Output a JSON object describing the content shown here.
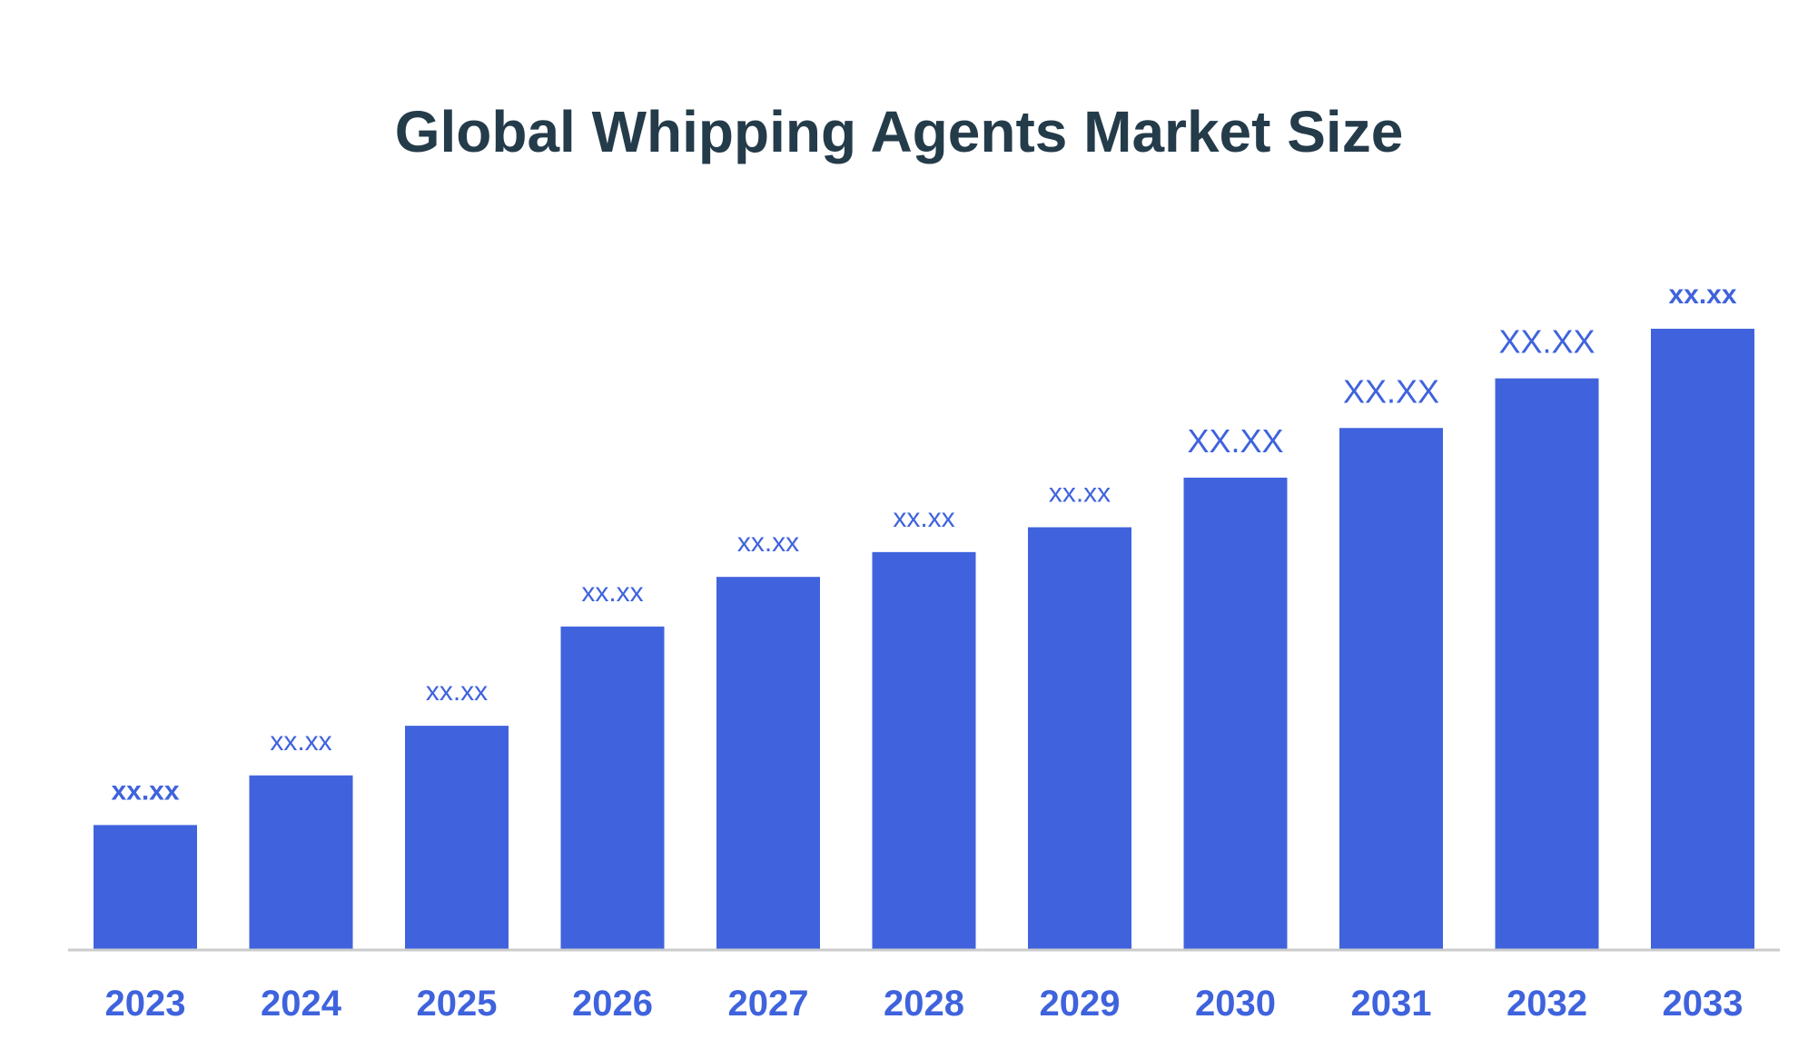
{
  "chart_data": {
    "type": "bar",
    "title": "Global Whipping Agents Market Size",
    "xlabel": "",
    "ylabel": "",
    "categories": [
      "2023",
      "2024",
      "2025",
      "2026",
      "2027",
      "2028",
      "2029",
      "2030",
      "2031",
      "2032",
      "2033"
    ],
    "values": [
      2.5,
      3.5,
      4.5,
      6.5,
      7.5,
      8.0,
      8.5,
      9.5,
      10.5,
      11.5,
      12.5
    ],
    "data_labels": [
      "xx.xx",
      "xx.xx",
      "xx.xx",
      "xx.xx",
      "xx.xx",
      "xx.xx",
      "xx.xx",
      "XX.XX",
      "XX.XX",
      "XX.XX",
      "xx.xx"
    ],
    "ylim": [
      0,
      14
    ],
    "grid": false,
    "legend": "none",
    "colors": {
      "bar": "#4063dd",
      "label": "#3f63dd",
      "title": "#243b4a",
      "axis": "#cccccc"
    }
  }
}
